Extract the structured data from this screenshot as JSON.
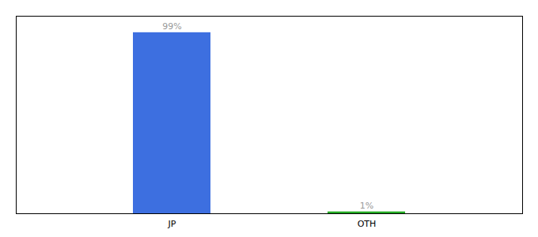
{
  "chart_data": {
    "type": "bar",
    "categories": [
      "JP",
      "OTH"
    ],
    "values": [
      99,
      1
    ],
    "value_labels": [
      "99%",
      "1%"
    ],
    "colors": [
      "#3D6FE0",
      "#22AA22"
    ],
    "ylim": [
      0,
      108
    ],
    "yticks": [],
    "grid": false,
    "data_labels": true,
    "tick_labels": "x"
  }
}
